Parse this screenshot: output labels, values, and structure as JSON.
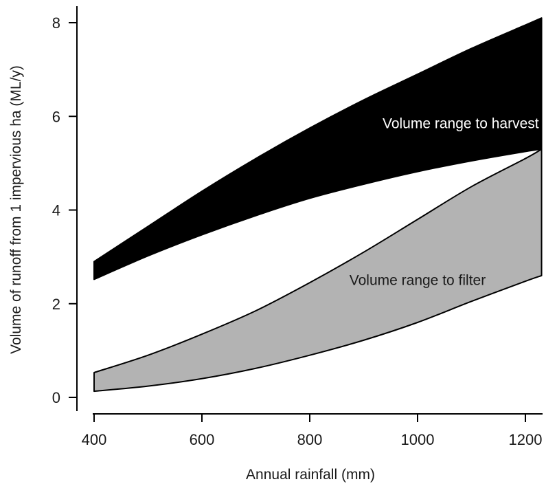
{
  "chart_data": {
    "type": "area",
    "xlabel": "Annual rainfall (mm)",
    "ylabel": "Volume of runoff from 1 impervious ha (ML/y)",
    "xlim": [
      400,
      1230
    ],
    "ylim": [
      0,
      8
    ],
    "xticks": [
      400,
      600,
      800,
      1000,
      1200
    ],
    "yticks": [
      0,
      2,
      4,
      6,
      8
    ],
    "grid": false,
    "legend": "none",
    "x": [
      400,
      500,
      600,
      700,
      800,
      900,
      1000,
      1100,
      1200,
      1230
    ],
    "bands": [
      {
        "upper": [
          2.9,
          3.65,
          4.4,
          5.1,
          5.75,
          6.35,
          6.9,
          7.45,
          7.95,
          8.1
        ],
        "lower": [
          2.52,
          3.02,
          3.47,
          3.88,
          4.25,
          4.55,
          4.82,
          5.05,
          5.25,
          5.3
        ],
        "fill": "#000000",
        "annotation": "Volume range to harvest",
        "annotation_color": "#ffffff",
        "annotation_at": [
          1080,
          5.75
        ]
      },
      {
        "upper": [
          0.53,
          0.9,
          1.35,
          1.85,
          2.45,
          3.1,
          3.8,
          4.5,
          5.1,
          5.3
        ],
        "lower": [
          0.13,
          0.24,
          0.4,
          0.62,
          0.9,
          1.22,
          1.6,
          2.05,
          2.48,
          2.6
        ],
        "fill": "#b3b3b3",
        "annotation": "Volume range to filter",
        "annotation_color": "#1a1a1a",
        "annotation_at": [
          1000,
          2.4
        ]
      }
    ]
  }
}
